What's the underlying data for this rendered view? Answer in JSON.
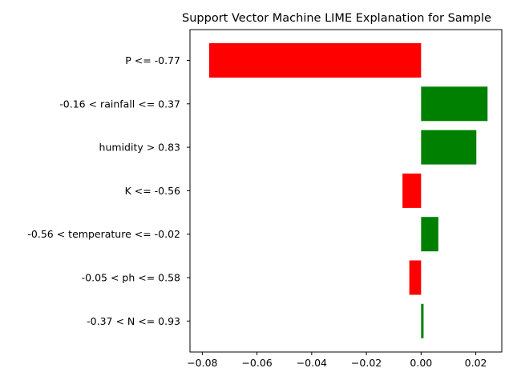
{
  "chart_data": {
    "type": "bar",
    "orientation": "horizontal",
    "title": "Support Vector Machine LIME Explanation for Sample",
    "xlabel": "",
    "ylabel": "",
    "xlim": [
      -0.0845,
      0.0295
    ],
    "xticks": [
      -0.08,
      -0.06,
      -0.04,
      -0.02,
      0.0,
      0.02
    ],
    "xtick_labels": [
      "−0.08",
      "−0.06",
      "−0.04",
      "−0.02",
      "0.00",
      "0.02"
    ],
    "categories": [
      "P <= -0.77",
      "-0.16 < rainfall <= 0.37",
      "humidity > 0.83",
      "K <= -0.56",
      "-0.56 < temperature <= -0.02",
      "-0.05 < ph <= 0.58",
      "-0.37 < N <= 0.93"
    ],
    "values": [
      -0.0775,
      0.0243,
      0.0202,
      -0.0068,
      0.0063,
      -0.0043,
      0.0009
    ],
    "grid": false,
    "legend": "none",
    "colors": {
      "positive": "#008000",
      "negative": "#ff0000"
    }
  }
}
